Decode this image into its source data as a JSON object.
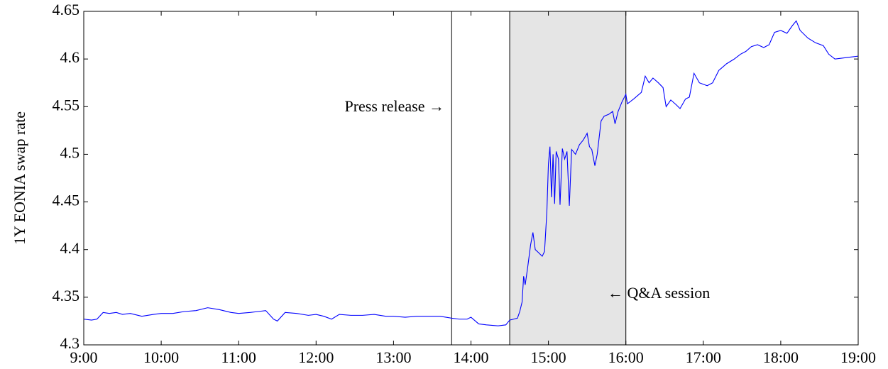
{
  "chart_data": {
    "type": "line",
    "y_label": "1Y EONIA swap rate",
    "annotations": [
      "Press release →",
      "← Q&A session"
    ],
    "event_line": 13.75,
    "shaded_span": [
      14.5,
      16
    ],
    "color": "#0000ff",
    "xlim": [
      9,
      19
    ],
    "xticks": [
      {
        "value": 9,
        "label": "9:00"
      },
      {
        "value": 10,
        "label": "10:00"
      },
      {
        "value": 11,
        "label": "11:00"
      },
      {
        "value": 12,
        "label": "12:00"
      },
      {
        "value": 13,
        "label": "13:00"
      },
      {
        "value": 14,
        "label": "14:00"
      },
      {
        "value": 15,
        "label": "15:00"
      },
      {
        "value": 16,
        "label": "16:00"
      },
      {
        "value": 17,
        "label": "17:00"
      },
      {
        "value": 18,
        "label": "18:00"
      },
      {
        "value": 19,
        "label": "19:00"
      }
    ],
    "ylim": [
      4.3,
      4.65
    ],
    "yticks": [
      4.3,
      4.35,
      4.4,
      4.45,
      4.5,
      4.55,
      4.6,
      4.65
    ],
    "x": [
      9,
      9.1,
      9.17,
      9.25,
      9.33,
      9.42,
      9.5,
      9.6,
      9.75,
      9.9,
      10,
      10.15,
      10.3,
      10.45,
      10.6,
      10.75,
      10.9,
      11,
      11.15,
      11.25,
      11.35,
      11.45,
      11.5,
      11.6,
      11.75,
      11.9,
      12,
      12.1,
      12.2,
      12.3,
      12.45,
      12.6,
      12.75,
      12.9,
      13,
      13.15,
      13.3,
      13.45,
      13.6,
      13.75,
      13.85,
      13.95,
      14,
      14.1,
      14.2,
      14.35,
      14.45,
      14.5,
      14.55,
      14.6,
      14.63,
      14.66,
      14.68,
      14.7,
      14.73,
      14.77,
      14.8,
      14.83,
      14.87,
      14.92,
      14.95,
      14.98,
      15,
      15.02,
      15.04,
      15.06,
      15.08,
      15.1,
      15.13,
      15.15,
      15.18,
      15.21,
      15.24,
      15.27,
      15.3,
      15.35,
      15.4,
      15.45,
      15.5,
      15.53,
      15.56,
      15.6,
      15.63,
      15.68,
      15.72,
      15.78,
      15.83,
      15.86,
      15.9,
      15.95,
      16,
      16.02,
      16.1,
      16.2,
      16.25,
      16.3,
      16.35,
      16.42,
      16.48,
      16.52,
      16.58,
      16.65,
      16.7,
      16.77,
      16.82,
      16.88,
      16.95,
      17.05,
      17.12,
      17.2,
      17.3,
      17.4,
      17.48,
      17.55,
      17.62,
      17.7,
      17.78,
      17.85,
      17.92,
      18,
      18.08,
      18.15,
      18.2,
      18.25,
      18.35,
      18.45,
      18.55,
      18.62,
      18.7,
      18.8,
      18.9,
      19
    ],
    "values": [
      4.327,
      4.326,
      4.327,
      4.334,
      4.333,
      4.334,
      4.332,
      4.333,
      4.33,
      4.332,
      4.333,
      4.333,
      4.335,
      4.336,
      4.339,
      4.337,
      4.334,
      4.333,
      4.334,
      4.335,
      4.336,
      4.327,
      4.325,
      4.334,
      4.333,
      4.331,
      4.332,
      4.33,
      4.327,
      4.332,
      4.331,
      4.331,
      4.332,
      4.33,
      4.33,
      4.329,
      4.33,
      4.33,
      4.33,
      4.328,
      4.327,
      4.327,
      4.329,
      4.322,
      4.321,
      4.32,
      4.321,
      4.326,
      4.327,
      4.328,
      4.335,
      4.345,
      4.372,
      4.363,
      4.38,
      4.405,
      4.418,
      4.4,
      4.397,
      4.393,
      4.398,
      4.44,
      4.49,
      4.508,
      4.455,
      4.5,
      4.448,
      4.503,
      4.495,
      4.447,
      4.506,
      4.495,
      4.503,
      4.446,
      4.505,
      4.5,
      4.51,
      4.515,
      4.522,
      4.508,
      4.505,
      4.488,
      4.5,
      4.535,
      4.54,
      4.542,
      4.545,
      4.532,
      4.545,
      4.555,
      4.563,
      4.553,
      4.558,
      4.565,
      4.582,
      4.575,
      4.58,
      4.575,
      4.57,
      4.55,
      4.557,
      4.552,
      4.548,
      4.558,
      4.56,
      4.585,
      4.575,
      4.572,
      4.575,
      4.588,
      4.595,
      4.6,
      4.605,
      4.608,
      4.613,
      4.615,
      4.612,
      4.615,
      4.628,
      4.63,
      4.627,
      4.635,
      4.64,
      4.63,
      4.622,
      4.617,
      4.614,
      4.605,
      4.6,
      4.601,
      4.602,
      4.603
    ]
  }
}
